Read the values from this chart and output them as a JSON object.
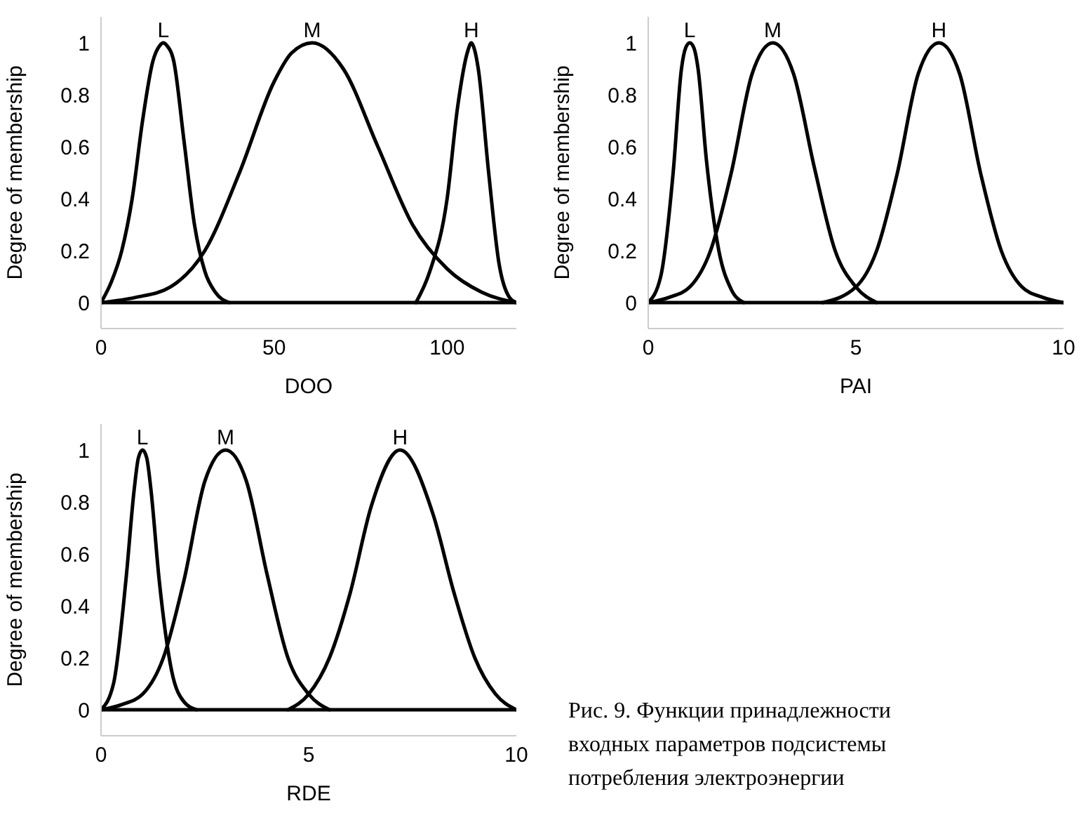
{
  "chart_data": [
    {
      "type": "line",
      "xlabel": "DOO",
      "ylabel": "Degree of membership",
      "xlim": [
        0,
        120
      ],
      "xticks": [
        0,
        50,
        100
      ],
      "ylim": [
        -0.1,
        1.1
      ],
      "yticks": [
        0,
        0.2,
        0.4,
        0.6,
        0.8,
        1
      ],
      "marker": "none",
      "ref_lines": [
        {
          "axis": "y",
          "value": 0
        }
      ],
      "series": [
        {
          "name": "L",
          "color": "#000000",
          "x": [
            0,
            3,
            6,
            9,
            12,
            15,
            17,
            18,
            19,
            21,
            24,
            27,
            30,
            33,
            37
          ],
          "values": [
            0,
            0.08,
            0.2,
            0.4,
            0.7,
            0.93,
            0.99,
            1,
            0.99,
            0.93,
            0.62,
            0.3,
            0.12,
            0.04,
            0
          ]
        },
        {
          "name": "M",
          "color": "#000000",
          "x": [
            0,
            10,
            20,
            30,
            40,
            50,
            55,
            61,
            70,
            80,
            90,
            100,
            110,
            120
          ],
          "values": [
            0,
            0.02,
            0.06,
            0.2,
            0.5,
            0.85,
            0.96,
            1,
            0.9,
            0.6,
            0.3,
            0.13,
            0.04,
            0
          ]
        },
        {
          "name": "H",
          "color": "#000000",
          "x": [
            91,
            95,
            100,
            103,
            106,
            107,
            108,
            109,
            112,
            115,
            118,
            120
          ],
          "values": [
            0,
            0.12,
            0.4,
            0.75,
            0.97,
            1,
            0.97,
            0.9,
            0.5,
            0.15,
            0.02,
            0
          ]
        }
      ]
    },
    {
      "type": "line",
      "xlabel": "PAI",
      "ylabel": "Degree of membership",
      "xlim": [
        0,
        10
      ],
      "xticks": [
        0,
        5,
        10
      ],
      "ylim": [
        -0.1,
        1.1
      ],
      "yticks": [
        0,
        0.2,
        0.4,
        0.6,
        0.8,
        1
      ],
      "marker": "none",
      "ref_lines": [
        {
          "axis": "y",
          "value": 0
        }
      ],
      "series": [
        {
          "name": "L",
          "color": "#000000",
          "x": [
            0,
            0.3,
            0.6,
            0.8,
            0.9,
            1,
            1.1,
            1.2,
            1.4,
            1.7,
            2,
            2.3
          ],
          "values": [
            0,
            0.1,
            0.5,
            0.9,
            0.98,
            1,
            0.98,
            0.9,
            0.55,
            0.2,
            0.05,
            0
          ]
        },
        {
          "name": "M",
          "color": "#000000",
          "x": [
            0,
            0.5,
            1,
            1.5,
            2,
            2.5,
            3,
            3.5,
            4,
            4.5,
            5,
            5.5
          ],
          "values": [
            0,
            0.02,
            0.06,
            0.2,
            0.5,
            0.88,
            1,
            0.88,
            0.52,
            0.2,
            0.06,
            0
          ]
        },
        {
          "name": "H",
          "color": "#000000",
          "x": [
            4.2,
            5,
            5.5,
            6,
            6.5,
            7,
            7.5,
            8,
            8.5,
            9,
            9.5,
            10
          ],
          "values": [
            0,
            0.06,
            0.2,
            0.5,
            0.88,
            1,
            0.88,
            0.5,
            0.2,
            0.06,
            0.02,
            0
          ]
        }
      ]
    },
    {
      "type": "line",
      "xlabel": "RDE",
      "ylabel": "Degree of membership",
      "xlim": [
        0,
        10
      ],
      "xticks": [
        0,
        5,
        10
      ],
      "ylim": [
        -0.1,
        1.1
      ],
      "yticks": [
        0,
        0.2,
        0.4,
        0.6,
        0.8,
        1
      ],
      "marker": "none",
      "ref_lines": [
        {
          "axis": "y",
          "value": 0
        }
      ],
      "annotations": [
        "Рис. 9. Функции принадлежности входных параметров подсистемы потребления электроэнергии"
      ],
      "series": [
        {
          "name": "L",
          "color": "#000000",
          "x": [
            0,
            0.3,
            0.6,
            0.8,
            0.9,
            1,
            1.1,
            1.2,
            1.4,
            1.7,
            2,
            2.3
          ],
          "values": [
            0,
            0.1,
            0.5,
            0.85,
            0.97,
            1,
            0.97,
            0.85,
            0.5,
            0.15,
            0.03,
            0
          ]
        },
        {
          "name": "M",
          "color": "#000000",
          "x": [
            0,
            0.5,
            1,
            1.5,
            2,
            2.5,
            3,
            3.5,
            4,
            4.5,
            5,
            5.5
          ],
          "values": [
            0,
            0.02,
            0.06,
            0.2,
            0.5,
            0.88,
            1,
            0.88,
            0.52,
            0.2,
            0.06,
            0
          ]
        },
        {
          "name": "H",
          "color": "#000000",
          "x": [
            4.5,
            5,
            5.5,
            6,
            6.5,
            7.2,
            8,
            8.5,
            9,
            9.5,
            10
          ],
          "values": [
            0,
            0.06,
            0.2,
            0.45,
            0.78,
            1,
            0.75,
            0.45,
            0.2,
            0.06,
            0
          ]
        }
      ]
    }
  ]
}
